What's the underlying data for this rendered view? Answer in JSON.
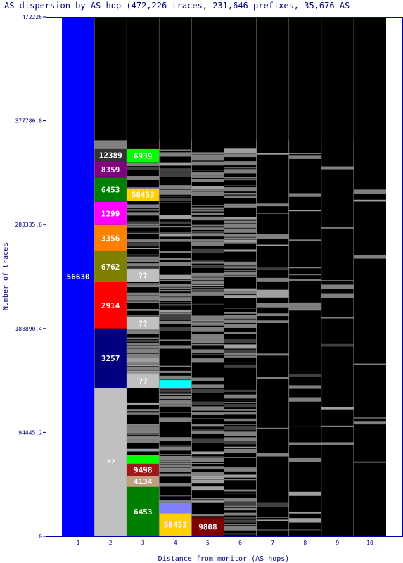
{
  "chart_data": {
    "type": "bar",
    "title": "AS dispersion by AS hop (472,226 traces, 231,646 prefixes, 35,676 AS",
    "xlabel": "Distance from monitor (AS hops)",
    "ylabel": "Number of traces",
    "ylim": [
      0,
      472226
    ],
    "y_ticks": [
      "472226",
      "377780.8",
      "283335.6",
      "188890.4",
      "94445.2",
      "0"
    ],
    "x_ticks": [
      "1",
      "2",
      "3",
      "4",
      "5",
      "6",
      "7",
      "8",
      "9",
      "10"
    ],
    "stacks": [
      {
        "hop": 1,
        "segments": [
          {
            "label": "56630",
            "start": 0,
            "end": 472226,
            "color": "#0000ff"
          }
        ]
      },
      {
        "hop": 2,
        "segments": [
          {
            "label": "??",
            "start": 0,
            "end": 135000,
            "color": "#c0c0c0"
          },
          {
            "label": "3257",
            "start": 135000,
            "end": 189000,
            "color": "#000080"
          },
          {
            "label": "2914",
            "start": 189000,
            "end": 231000,
            "color": "#ff0000"
          },
          {
            "label": "6762",
            "start": 231000,
            "end": 259000,
            "color": "#808000"
          },
          {
            "label": "3356",
            "start": 259000,
            "end": 283000,
            "color": "#ff8000"
          },
          {
            "label": "1299",
            "start": 283000,
            "end": 304000,
            "color": "#ff00ff"
          },
          {
            "label": "6453",
            "start": 304000,
            "end": 326000,
            "color": "#008000"
          },
          {
            "label": "8359",
            "start": 326000,
            "end": 341000,
            "color": "#800080"
          },
          {
            "label": "12389",
            "start": 341000,
            "end": 352000,
            "color": "#333333"
          },
          {
            "label": "",
            "start": 352000,
            "end": 360000,
            "color": "#808080"
          }
        ]
      },
      {
        "hop": 3,
        "segments": [
          {
            "label": "6453",
            "start": 0,
            "end": 45000,
            "color": "#008000"
          },
          {
            "label": "4134",
            "start": 45000,
            "end": 55000,
            "color": "#c0a080"
          },
          {
            "label": "9498",
            "start": 55000,
            "end": 66000,
            "color": "#a01818"
          },
          {
            "label": "",
            "start": 66000,
            "end": 74000,
            "color": "#00ff00"
          },
          {
            "label": "??",
            "start": 135000,
            "end": 147000,
            "color": "#c0c0c0"
          },
          {
            "label": "??",
            "start": 188000,
            "end": 199000,
            "color": "#c0c0c0"
          },
          {
            "label": "??",
            "start": 231000,
            "end": 243000,
            "color": "#c0c0c0"
          },
          {
            "label": "58453",
            "start": 305000,
            "end": 316000,
            "color": "#ffd000"
          },
          {
            "label": "6939",
            "start": 340000,
            "end": 352000,
            "color": "#00ff00"
          }
        ]
      },
      {
        "hop": 4,
        "segments": [
          {
            "label": "58453",
            "start": 0,
            "end": 21000,
            "color": "#ffd000"
          },
          {
            "label": "",
            "start": 21000,
            "end": 30000,
            "color": "#8080ff"
          },
          {
            "label": "",
            "start": 135000,
            "end": 142000,
            "color": "#00ffff"
          }
        ]
      },
      {
        "hop": 5,
        "segments": [
          {
            "label": "9808",
            "start": 0,
            "end": 17000,
            "color": "#800000"
          }
        ]
      }
    ]
  }
}
